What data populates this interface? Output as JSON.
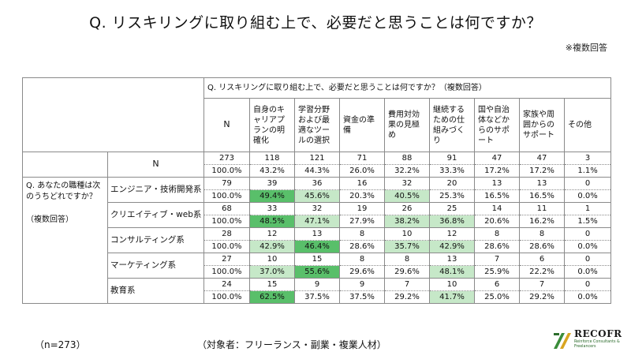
{
  "title": "Q. リスキリングに取り組む上で、必要だと思うことは何ですか？",
  "note": "※複数回答",
  "footer": {
    "n_text": "（n=273）",
    "target_text": "（対象者：フリーランス・副業・複業人材）"
  },
  "logo": {
    "name": "RECOFR",
    "tagline_1": "Reinforce Consultants &",
    "tagline_2": "Freelancers"
  },
  "colors": {
    "strong_highlight": "#59bf6a",
    "light_highlight": "#c6e8c8",
    "border": "#8a8a8a"
  },
  "chart_data": {
    "type": "table",
    "header_question": "Q. リスキリングに取り組む上で、必要だと思うことは何ですか？（複数回答）",
    "row_question": "Q. あなたの職種は次のうちどれですか？",
    "row_question_note": "（複数回答）",
    "n_label": "N",
    "columns": [
      "N",
      "自身のキャリアプランの明確化",
      "学習分野および最適なツールの選択",
      "資金の準備",
      "費用対効果の見極め",
      "継続するための仕組みづくり",
      "国や自治体などからのサポート",
      "家族や周囲からのサポート",
      "その他"
    ],
    "rows": [
      {
        "label": "N",
        "counts": [
          "273",
          "118",
          "121",
          "71",
          "88",
          "91",
          "47",
          "47",
          "3"
        ],
        "percents": [
          "100.0%",
          "43.2%",
          "44.3%",
          "26.0%",
          "32.2%",
          "33.3%",
          "17.2%",
          "17.2%",
          "1.1%"
        ],
        "highlight": [
          "",
          "",
          "",
          "",
          "",
          "",
          "",
          "",
          ""
        ]
      },
      {
        "label": "エンジニア・技術開発系",
        "counts": [
          "79",
          "39",
          "36",
          "16",
          "32",
          "20",
          "13",
          "13",
          "0"
        ],
        "percents": [
          "100.0%",
          "49.4%",
          "45.6%",
          "20.3%",
          "40.5%",
          "25.3%",
          "16.5%",
          "16.5%",
          "0.0%"
        ],
        "highlight": [
          "",
          "strong",
          "light",
          "",
          "light",
          "",
          "",
          "",
          ""
        ]
      },
      {
        "label": "クリエイティブ・web系",
        "counts": [
          "68",
          "33",
          "32",
          "19",
          "26",
          "25",
          "14",
          "11",
          "1"
        ],
        "percents": [
          "100.0%",
          "48.5%",
          "47.1%",
          "27.9%",
          "38.2%",
          "36.8%",
          "20.6%",
          "16.2%",
          "1.5%"
        ],
        "highlight": [
          "",
          "strong",
          "light",
          "",
          "light",
          "light",
          "",
          "",
          ""
        ]
      },
      {
        "label": "コンサルティング系",
        "counts": [
          "28",
          "12",
          "13",
          "8",
          "10",
          "12",
          "8",
          "8",
          "0"
        ],
        "percents": [
          "100.0%",
          "42.9%",
          "46.4%",
          "28.6%",
          "35.7%",
          "42.9%",
          "28.6%",
          "28.6%",
          "0.0%"
        ],
        "highlight": [
          "",
          "light",
          "strong",
          "",
          "light",
          "light",
          "",
          "",
          ""
        ]
      },
      {
        "label": "マーケティング系",
        "counts": [
          "27",
          "10",
          "15",
          "8",
          "8",
          "13",
          "7",
          "6",
          "0"
        ],
        "percents": [
          "100.0%",
          "37.0%",
          "55.6%",
          "29.6%",
          "29.6%",
          "48.1%",
          "25.9%",
          "22.2%",
          "0.0%"
        ],
        "highlight": [
          "",
          "light",
          "strong",
          "",
          "",
          "light",
          "",
          "",
          ""
        ]
      },
      {
        "label": "教育系",
        "counts": [
          "24",
          "15",
          "9",
          "9",
          "7",
          "10",
          "6",
          "7",
          "0"
        ],
        "percents": [
          "100.0%",
          "62.5%",
          "37.5%",
          "37.5%",
          "29.2%",
          "41.7%",
          "25.0%",
          "29.2%",
          "0.0%"
        ],
        "highlight": [
          "",
          "strong",
          "",
          "",
          "",
          "light",
          "",
          "",
          ""
        ]
      }
    ]
  }
}
